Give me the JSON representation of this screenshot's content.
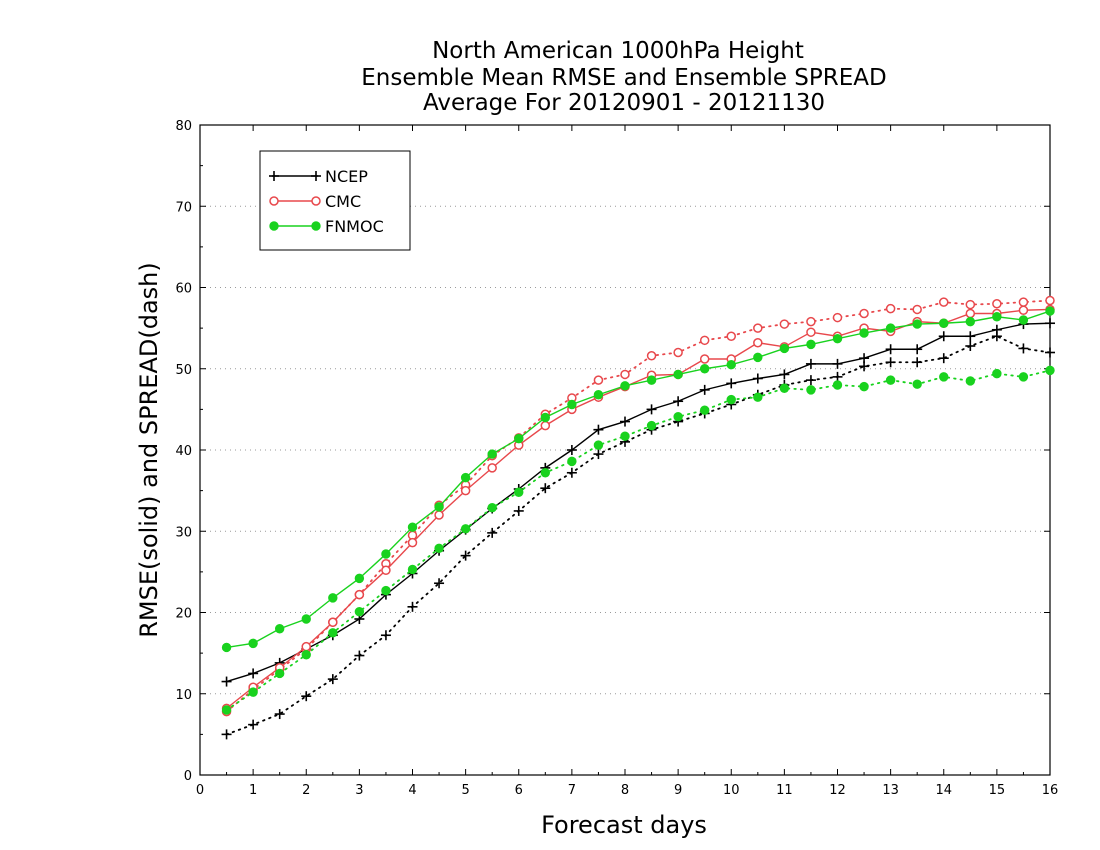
{
  "chart_data": {
    "type": "line",
    "title_lines": [
      "North American 1000hPa Height",
      "Ensemble Mean RMSE and Ensemble SPREAD",
      "Average For 20120901 - 20121130"
    ],
    "xlabel": "Forecast days",
    "ylabel": "RMSE(solid) and SPREAD(dash)",
    "xlim": [
      0,
      16
    ],
    "ylim": [
      0,
      80
    ],
    "xticks": [
      "0",
      "1",
      "2",
      "3",
      "4",
      "5",
      "6",
      "7",
      "8",
      "9",
      "10",
      "11",
      "12",
      "13",
      "14",
      "15",
      "16"
    ],
    "yticks": [
      "0",
      "10",
      "20",
      "30",
      "40",
      "50",
      "60",
      "70",
      "80"
    ],
    "grid": "horizontal dotted",
    "legend_position": "top-left",
    "x": [
      0.5,
      1,
      1.5,
      2,
      2.5,
      3,
      3.5,
      4,
      4.5,
      5,
      5.5,
      6,
      6.5,
      7,
      7.5,
      8,
      8.5,
      9,
      9.5,
      10,
      10.5,
      11,
      11.5,
      12,
      12.5,
      13,
      13.5,
      14,
      14.5,
      15,
      15.5,
      16
    ],
    "series": [
      {
        "name": "NCEP",
        "color": "#000000",
        "marker": "plus",
        "rmse": [
          11.5,
          12.5,
          13.8,
          15.5,
          17.2,
          19.2,
          22.2,
          24.8,
          27.6,
          30.2,
          32.8,
          35.2,
          37.8,
          40.0,
          42.5,
          43.5,
          45.0,
          46.0,
          47.4,
          48.2,
          48.8,
          49.3,
          50.6,
          50.6,
          51.3,
          52.4,
          52.4,
          54.0,
          54.0,
          54.8,
          55.5,
          55.6
        ],
        "spread": [
          5.0,
          6.2,
          7.5,
          9.7,
          11.8,
          14.7,
          17.2,
          20.7,
          23.6,
          27.0,
          29.8,
          32.5,
          35.3,
          37.2,
          39.5,
          41.0,
          42.5,
          43.5,
          44.5,
          45.6,
          46.8,
          48.0,
          48.6,
          49.0,
          50.3,
          50.8,
          50.8,
          51.3,
          52.8,
          54.0,
          52.5,
          52.0
        ]
      },
      {
        "name": "CMC",
        "color": "#e8484c",
        "marker": "open-circle",
        "rmse": [
          8.2,
          10.8,
          13.2,
          15.8,
          18.8,
          22.2,
          25.2,
          28.6,
          32.0,
          35.0,
          37.8,
          40.6,
          43.0,
          45.0,
          46.5,
          47.8,
          49.2,
          49.3,
          51.2,
          51.2,
          53.2,
          52.7,
          54.5,
          54.0,
          55.0,
          54.6,
          55.8,
          55.6,
          56.8,
          56.8,
          57.2,
          57.3
        ],
        "spread": [
          7.8,
          10.5,
          13.0,
          15.5,
          18.8,
          22.2,
          26.0,
          29.5,
          33.2,
          35.7,
          39.3,
          41.5,
          44.4,
          46.4,
          48.6,
          49.3,
          51.6,
          52.0,
          53.5,
          54.0,
          55.0,
          55.5,
          55.8,
          56.3,
          56.8,
          57.4,
          57.3,
          58.2,
          57.9,
          58.0,
          58.2,
          58.4
        ]
      },
      {
        "name": "FNMOC",
        "color": "#19d21e",
        "marker": "filled-circle",
        "rmse": [
          15.7,
          16.2,
          18.0,
          19.2,
          21.8,
          24.2,
          27.2,
          30.5,
          33.0,
          36.6,
          39.5,
          41.4,
          44.0,
          45.6,
          46.8,
          47.9,
          48.6,
          49.3,
          50.0,
          50.5,
          51.4,
          52.5,
          53.0,
          53.7,
          54.4,
          55.0,
          55.5,
          55.6,
          55.8,
          56.4,
          56.0,
          57.1
        ],
        "spread": [
          8.0,
          10.2,
          12.5,
          14.8,
          17.5,
          20.1,
          22.7,
          25.3,
          27.9,
          30.3,
          32.9,
          34.8,
          37.2,
          38.6,
          40.6,
          41.7,
          43.0,
          44.1,
          44.9,
          46.2,
          46.5,
          47.6,
          47.4,
          48.0,
          47.8,
          48.6,
          48.1,
          49.0,
          48.5,
          49.4,
          49.0,
          49.8
        ]
      }
    ]
  }
}
